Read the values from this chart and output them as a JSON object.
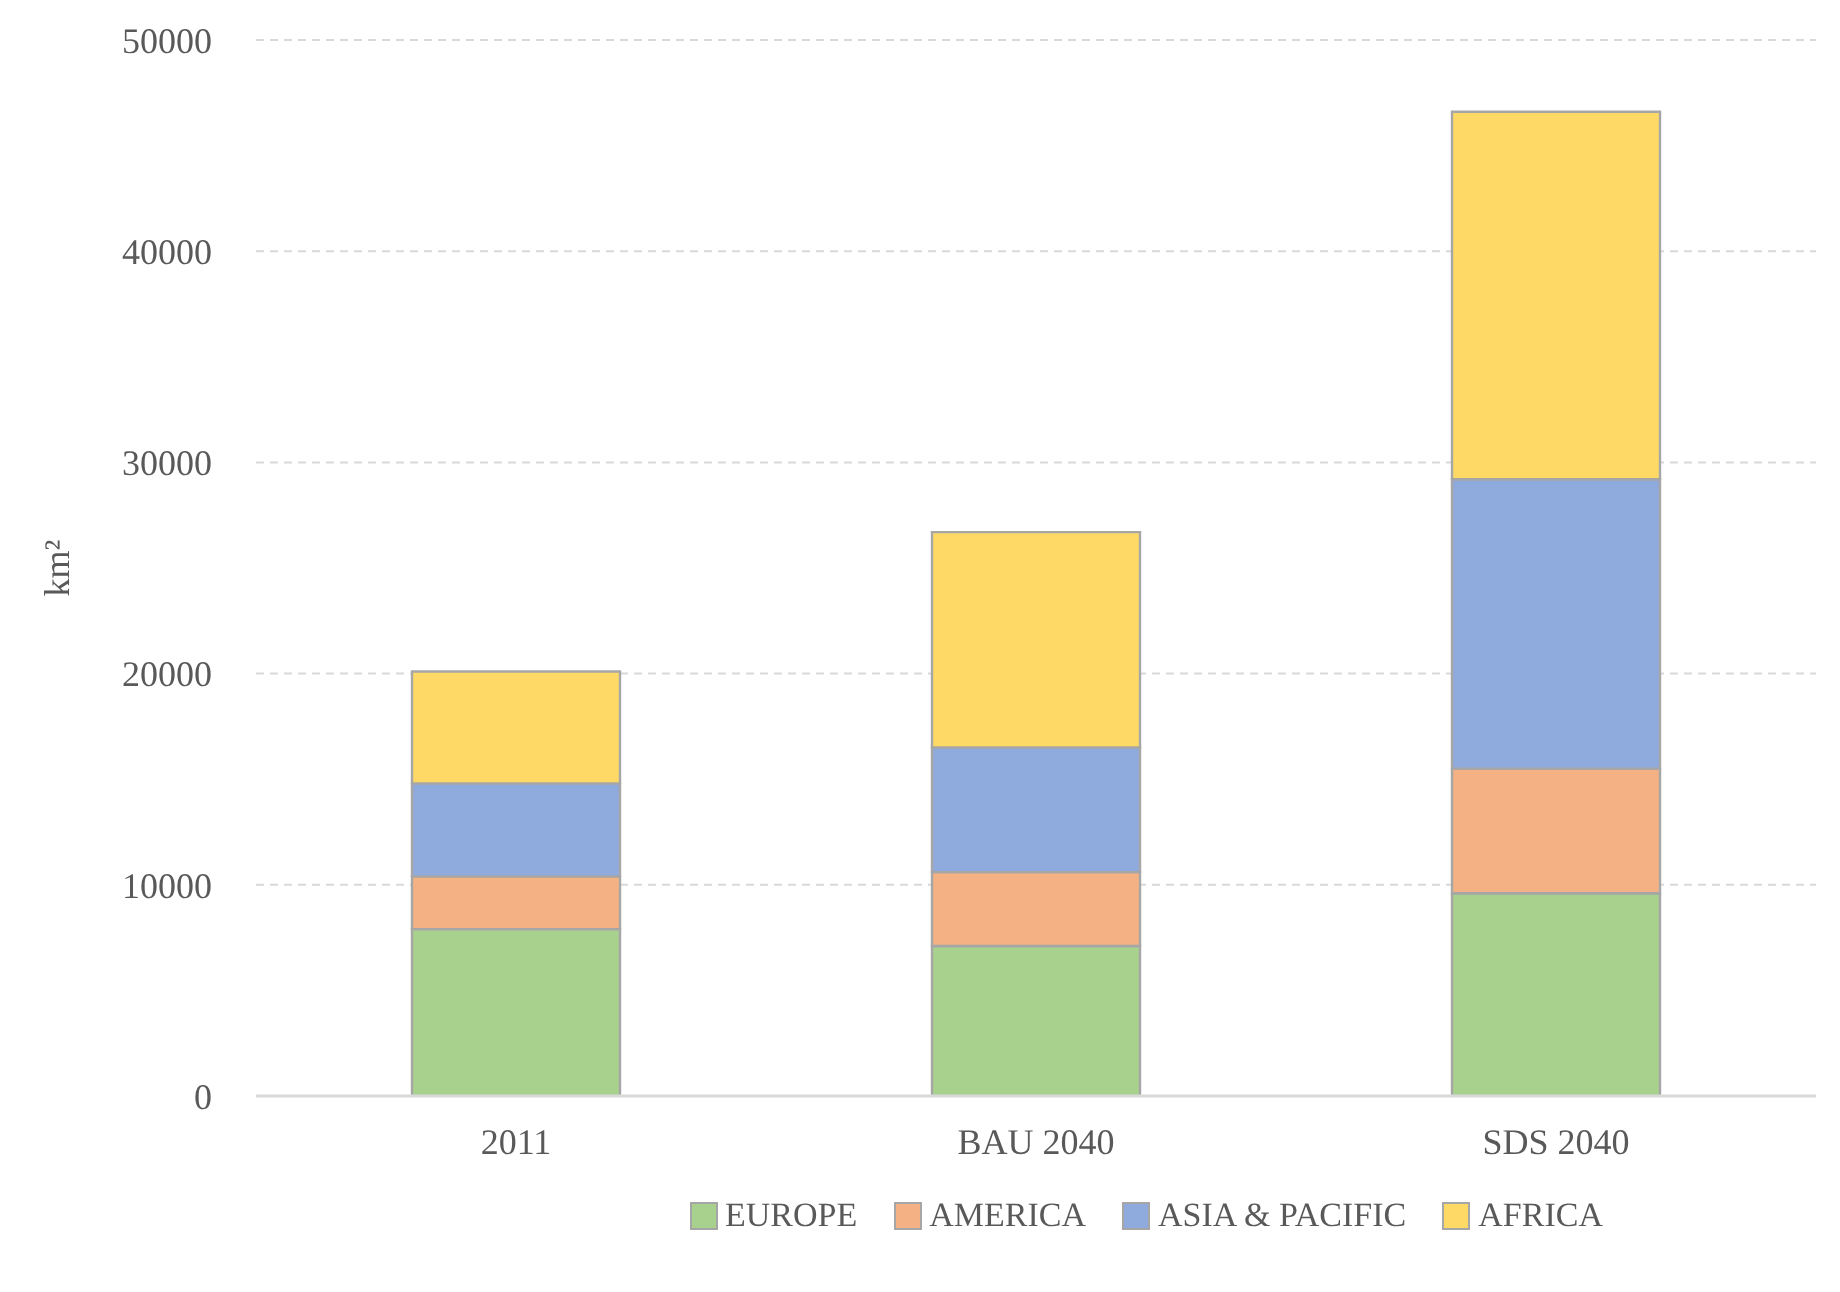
{
  "chart_data": {
    "type": "bar",
    "ylabel": "km²",
    "categories": [
      "2011",
      "BAU 2040",
      "SDS 2040"
    ],
    "stacked": true,
    "series": [
      {
        "name": "EUROPE",
        "color": "#a9d18e",
        "values": [
          7900,
          7100,
          9600
        ]
      },
      {
        "name": "AMERICA",
        "color": "#f4b183",
        "values": [
          2500,
          3500,
          5900
        ]
      },
      {
        "name": "ASIA & PACIFIC",
        "color": "#8faadc",
        "values": [
          4400,
          5900,
          13700
        ]
      },
      {
        "name": "AFRICA",
        "color": "#ffd966",
        "values": [
          5300,
          10200,
          17400
        ]
      }
    ],
    "ylim": [
      0,
      50000
    ],
    "yticks": [
      0,
      10000,
      20000,
      30000,
      40000,
      50000
    ],
    "grid": "y",
    "legend": "bottom"
  }
}
